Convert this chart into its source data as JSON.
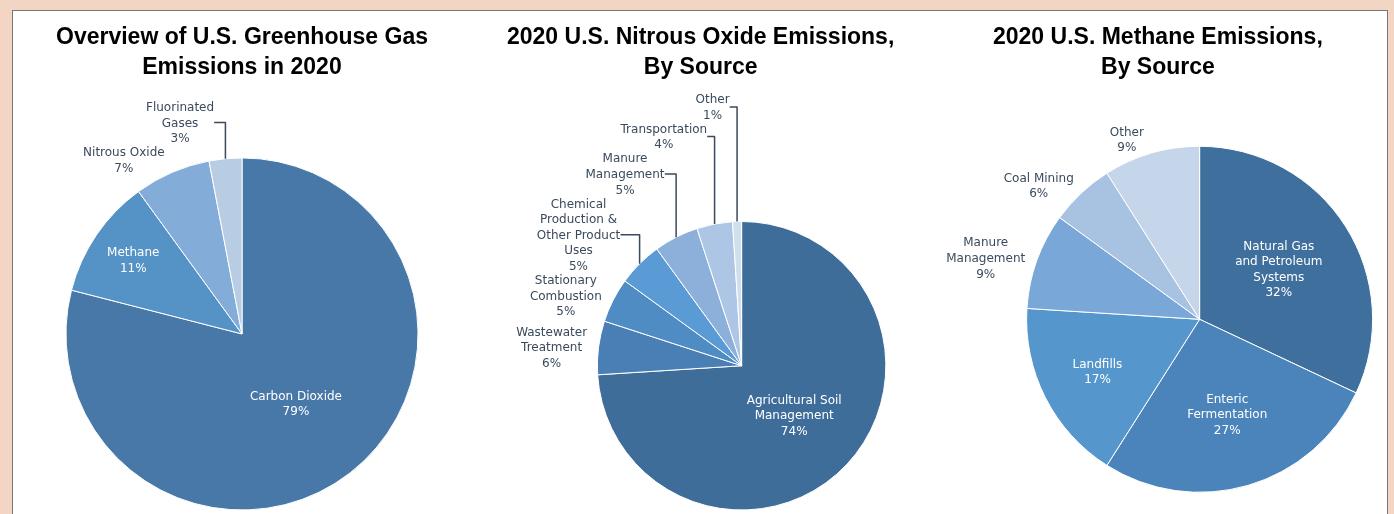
{
  "chart_data": [
    {
      "type": "pie",
      "title": "Overview of U.S. Greenhouse Gas\nEmissions in 2020",
      "categories": [
        "Carbon Dioxide",
        "Methane",
        "Nitrous Oxide",
        "Fluorinated\nGases"
      ],
      "values": [
        79,
        11,
        7,
        3
      ],
      "value_labels": [
        "79%",
        "11%",
        "7%",
        "3%"
      ],
      "colors": [
        "#4878a8",
        "#5592c6",
        "#84acd8",
        "#b8cce4"
      ],
      "legend": false
    },
    {
      "type": "pie",
      "title": "2020 U.S. Nitrous Oxide Emissions,\nBy Source",
      "categories": [
        "Agricultural Soil\nManagement",
        "Wastewater\nTreatment",
        "Stationary\nCombustion",
        "Chemical\nProduction &\nOther Product\nUses",
        "Manure\nManagement",
        "Transportation",
        "Other"
      ],
      "values": [
        74,
        6,
        5,
        5,
        5,
        4,
        1
      ],
      "value_labels": [
        "74%",
        "6%",
        "5%",
        "5%",
        "5%",
        "4%",
        "1%"
      ],
      "colors": [
        "#3f6d9a",
        "#4a7fb5",
        "#4f8cc4",
        "#5b9bd5",
        "#8cb0da",
        "#adc6e6",
        "#d0dff0"
      ],
      "legend": false
    },
    {
      "type": "pie",
      "title": "2020 U.S. Methane Emissions,\nBy Source",
      "categories": [
        "Natural Gas\nand Petroleum\nSystems",
        "Enteric\nFermentation",
        "Landfills",
        "Manure\nManagement",
        "Coal Mining",
        "Other"
      ],
      "values": [
        32,
        27,
        17,
        9,
        6,
        9
      ],
      "value_labels": [
        "32%",
        "27%",
        "17%",
        "9%",
        "6%",
        "9%"
      ],
      "colors": [
        "#3f6f9d",
        "#4a84ba",
        "#5596cc",
        "#79a7d8",
        "#a8c2e2",
        "#c5d6ea"
      ],
      "legend": false
    }
  ]
}
